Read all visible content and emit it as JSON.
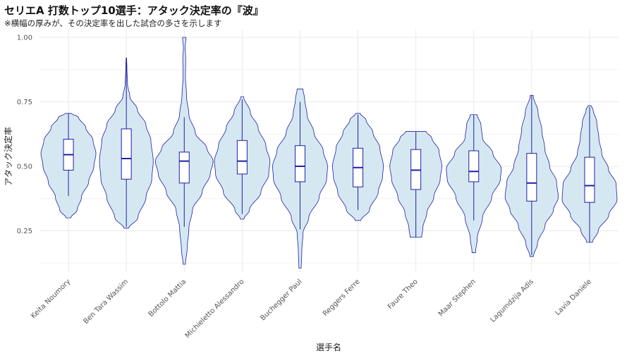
{
  "chart_data": {
    "type": "violin",
    "title": "セリエA 打数トップ10選手：アタック決定率の『波』",
    "subtitle": "※横幅の厚みが、その決定率を出した試合の多さを示します",
    "xlabel": "選手名",
    "ylabel": "アタック決定率",
    "ylim": [
      0.09,
      1.03
    ],
    "yticks": [
      "0.25",
      "0.50",
      "0.75",
      "1.00"
    ],
    "ytick_values": [
      0.25,
      0.5,
      0.75,
      1.0
    ],
    "grid": true,
    "colors": {
      "fill": "#d5e8f2",
      "stroke": "#1f1fa6",
      "grid": "#e9e9e9",
      "box": "#ffffff"
    },
    "categories": [
      "Keita Noumory",
      "Ben Tara Wassim",
      "Bottolo Mattia",
      "Michieletto Alessandro",
      "Buchegger Paul",
      "Reggers Ferre",
      "Faure Theo",
      "Maar Stephen",
      "Lagumdzija Adis",
      "Lavia Daniele"
    ],
    "series": [
      {
        "min": 0.3,
        "max": 0.705,
        "q1": 0.485,
        "median": 0.545,
        "q3": 0.605,
        "wlo": 0.385,
        "whi": 0.705,
        "density": [
          [
            0.3,
            0.08
          ],
          [
            0.33,
            0.3
          ],
          [
            0.38,
            0.45
          ],
          [
            0.44,
            0.7
          ],
          [
            0.5,
            0.88
          ],
          [
            0.55,
            0.95
          ],
          [
            0.6,
            0.85
          ],
          [
            0.65,
            0.6
          ],
          [
            0.69,
            0.35
          ],
          [
            0.705,
            0.1
          ]
        ]
      },
      {
        "min": 0.26,
        "max": 0.92,
        "q1": 0.45,
        "median": 0.53,
        "q3": 0.645,
        "wlo": 0.265,
        "whi": 0.915,
        "density": [
          [
            0.26,
            0.08
          ],
          [
            0.3,
            0.4
          ],
          [
            0.38,
            0.68
          ],
          [
            0.45,
            0.88
          ],
          [
            0.52,
            0.93
          ],
          [
            0.6,
            0.85
          ],
          [
            0.66,
            0.68
          ],
          [
            0.72,
            0.38
          ],
          [
            0.77,
            0.12
          ],
          [
            0.82,
            0.04
          ],
          [
            0.88,
            0.02
          ],
          [
            0.92,
            0.01
          ]
        ]
      },
      {
        "min": 0.12,
        "max": 1.0,
        "q1": 0.435,
        "median": 0.52,
        "q3": 0.555,
        "wlo": 0.265,
        "whi": 0.69,
        "density": [
          [
            0.12,
            0.04
          ],
          [
            0.18,
            0.1
          ],
          [
            0.26,
            0.16
          ],
          [
            0.33,
            0.28
          ],
          [
            0.4,
            0.62
          ],
          [
            0.47,
            0.9
          ],
          [
            0.52,
            1.0
          ],
          [
            0.57,
            0.78
          ],
          [
            0.63,
            0.38
          ],
          [
            0.7,
            0.16
          ],
          [
            0.77,
            0.08
          ],
          [
            0.85,
            0.04
          ],
          [
            0.92,
            0.05
          ],
          [
            0.96,
            0.03
          ],
          [
            1.0,
            0.06
          ]
        ]
      },
      {
        "min": 0.295,
        "max": 0.77,
        "q1": 0.47,
        "median": 0.52,
        "q3": 0.6,
        "wlo": 0.315,
        "whi": 0.76,
        "density": [
          [
            0.295,
            0.06
          ],
          [
            0.33,
            0.25
          ],
          [
            0.4,
            0.65
          ],
          [
            0.47,
            0.92
          ],
          [
            0.52,
            0.96
          ],
          [
            0.58,
            0.82
          ],
          [
            0.65,
            0.55
          ],
          [
            0.71,
            0.28
          ],
          [
            0.77,
            0.05
          ]
        ]
      },
      {
        "min": 0.105,
        "max": 0.8,
        "q1": 0.44,
        "median": 0.5,
        "q3": 0.58,
        "wlo": 0.255,
        "whi": 0.75,
        "density": [
          [
            0.105,
            0.04
          ],
          [
            0.17,
            0.06
          ],
          [
            0.24,
            0.1
          ],
          [
            0.3,
            0.3
          ],
          [
            0.38,
            0.66
          ],
          [
            0.45,
            0.92
          ],
          [
            0.5,
            0.95
          ],
          [
            0.56,
            0.8
          ],
          [
            0.63,
            0.48
          ],
          [
            0.7,
            0.24
          ],
          [
            0.76,
            0.16
          ],
          [
            0.8,
            0.1
          ]
        ]
      },
      {
        "min": 0.29,
        "max": 0.705,
        "q1": 0.42,
        "median": 0.495,
        "q3": 0.57,
        "wlo": 0.33,
        "whi": 0.7,
        "density": [
          [
            0.29,
            0.1
          ],
          [
            0.33,
            0.4
          ],
          [
            0.4,
            0.7
          ],
          [
            0.46,
            0.85
          ],
          [
            0.5,
            0.88
          ],
          [
            0.57,
            0.76
          ],
          [
            0.63,
            0.52
          ],
          [
            0.68,
            0.28
          ],
          [
            0.705,
            0.08
          ]
        ]
      },
      {
        "min": 0.225,
        "max": 0.635,
        "q1": 0.41,
        "median": 0.485,
        "q3": 0.565,
        "wlo": 0.225,
        "whi": 0.635,
        "density": [
          [
            0.225,
            0.2
          ],
          [
            0.26,
            0.24
          ],
          [
            0.32,
            0.38
          ],
          [
            0.38,
            0.62
          ],
          [
            0.45,
            0.84
          ],
          [
            0.5,
            0.9
          ],
          [
            0.56,
            0.8
          ],
          [
            0.61,
            0.55
          ],
          [
            0.635,
            0.35
          ]
        ]
      },
      {
        "min": 0.165,
        "max": 0.7,
        "q1": 0.44,
        "median": 0.48,
        "q3": 0.56,
        "wlo": 0.29,
        "whi": 0.7,
        "density": [
          [
            0.165,
            0.06
          ],
          [
            0.22,
            0.12
          ],
          [
            0.3,
            0.3
          ],
          [
            0.38,
            0.62
          ],
          [
            0.45,
            0.92
          ],
          [
            0.49,
            0.95
          ],
          [
            0.55,
            0.66
          ],
          [
            0.61,
            0.3
          ],
          [
            0.66,
            0.25
          ],
          [
            0.7,
            0.12
          ]
        ]
      },
      {
        "min": 0.15,
        "max": 0.775,
        "q1": 0.365,
        "median": 0.435,
        "q3": 0.55,
        "wlo": 0.155,
        "whi": 0.775,
        "density": [
          [
            0.15,
            0.06
          ],
          [
            0.2,
            0.2
          ],
          [
            0.27,
            0.46
          ],
          [
            0.33,
            0.75
          ],
          [
            0.38,
            0.92
          ],
          [
            0.44,
            0.86
          ],
          [
            0.5,
            0.62
          ],
          [
            0.57,
            0.45
          ],
          [
            0.64,
            0.35
          ],
          [
            0.71,
            0.22
          ],
          [
            0.775,
            0.05
          ]
        ]
      },
      {
        "min": 0.205,
        "max": 0.735,
        "q1": 0.36,
        "median": 0.425,
        "q3": 0.535,
        "wlo": 0.205,
        "whi": 0.73,
        "density": [
          [
            0.205,
            0.1
          ],
          [
            0.25,
            0.3
          ],
          [
            0.31,
            0.66
          ],
          [
            0.37,
            0.95
          ],
          [
            0.43,
            0.92
          ],
          [
            0.49,
            0.65
          ],
          [
            0.55,
            0.42
          ],
          [
            0.61,
            0.32
          ],
          [
            0.67,
            0.25
          ],
          [
            0.72,
            0.12
          ],
          [
            0.735,
            0.05
          ]
        ]
      }
    ]
  }
}
